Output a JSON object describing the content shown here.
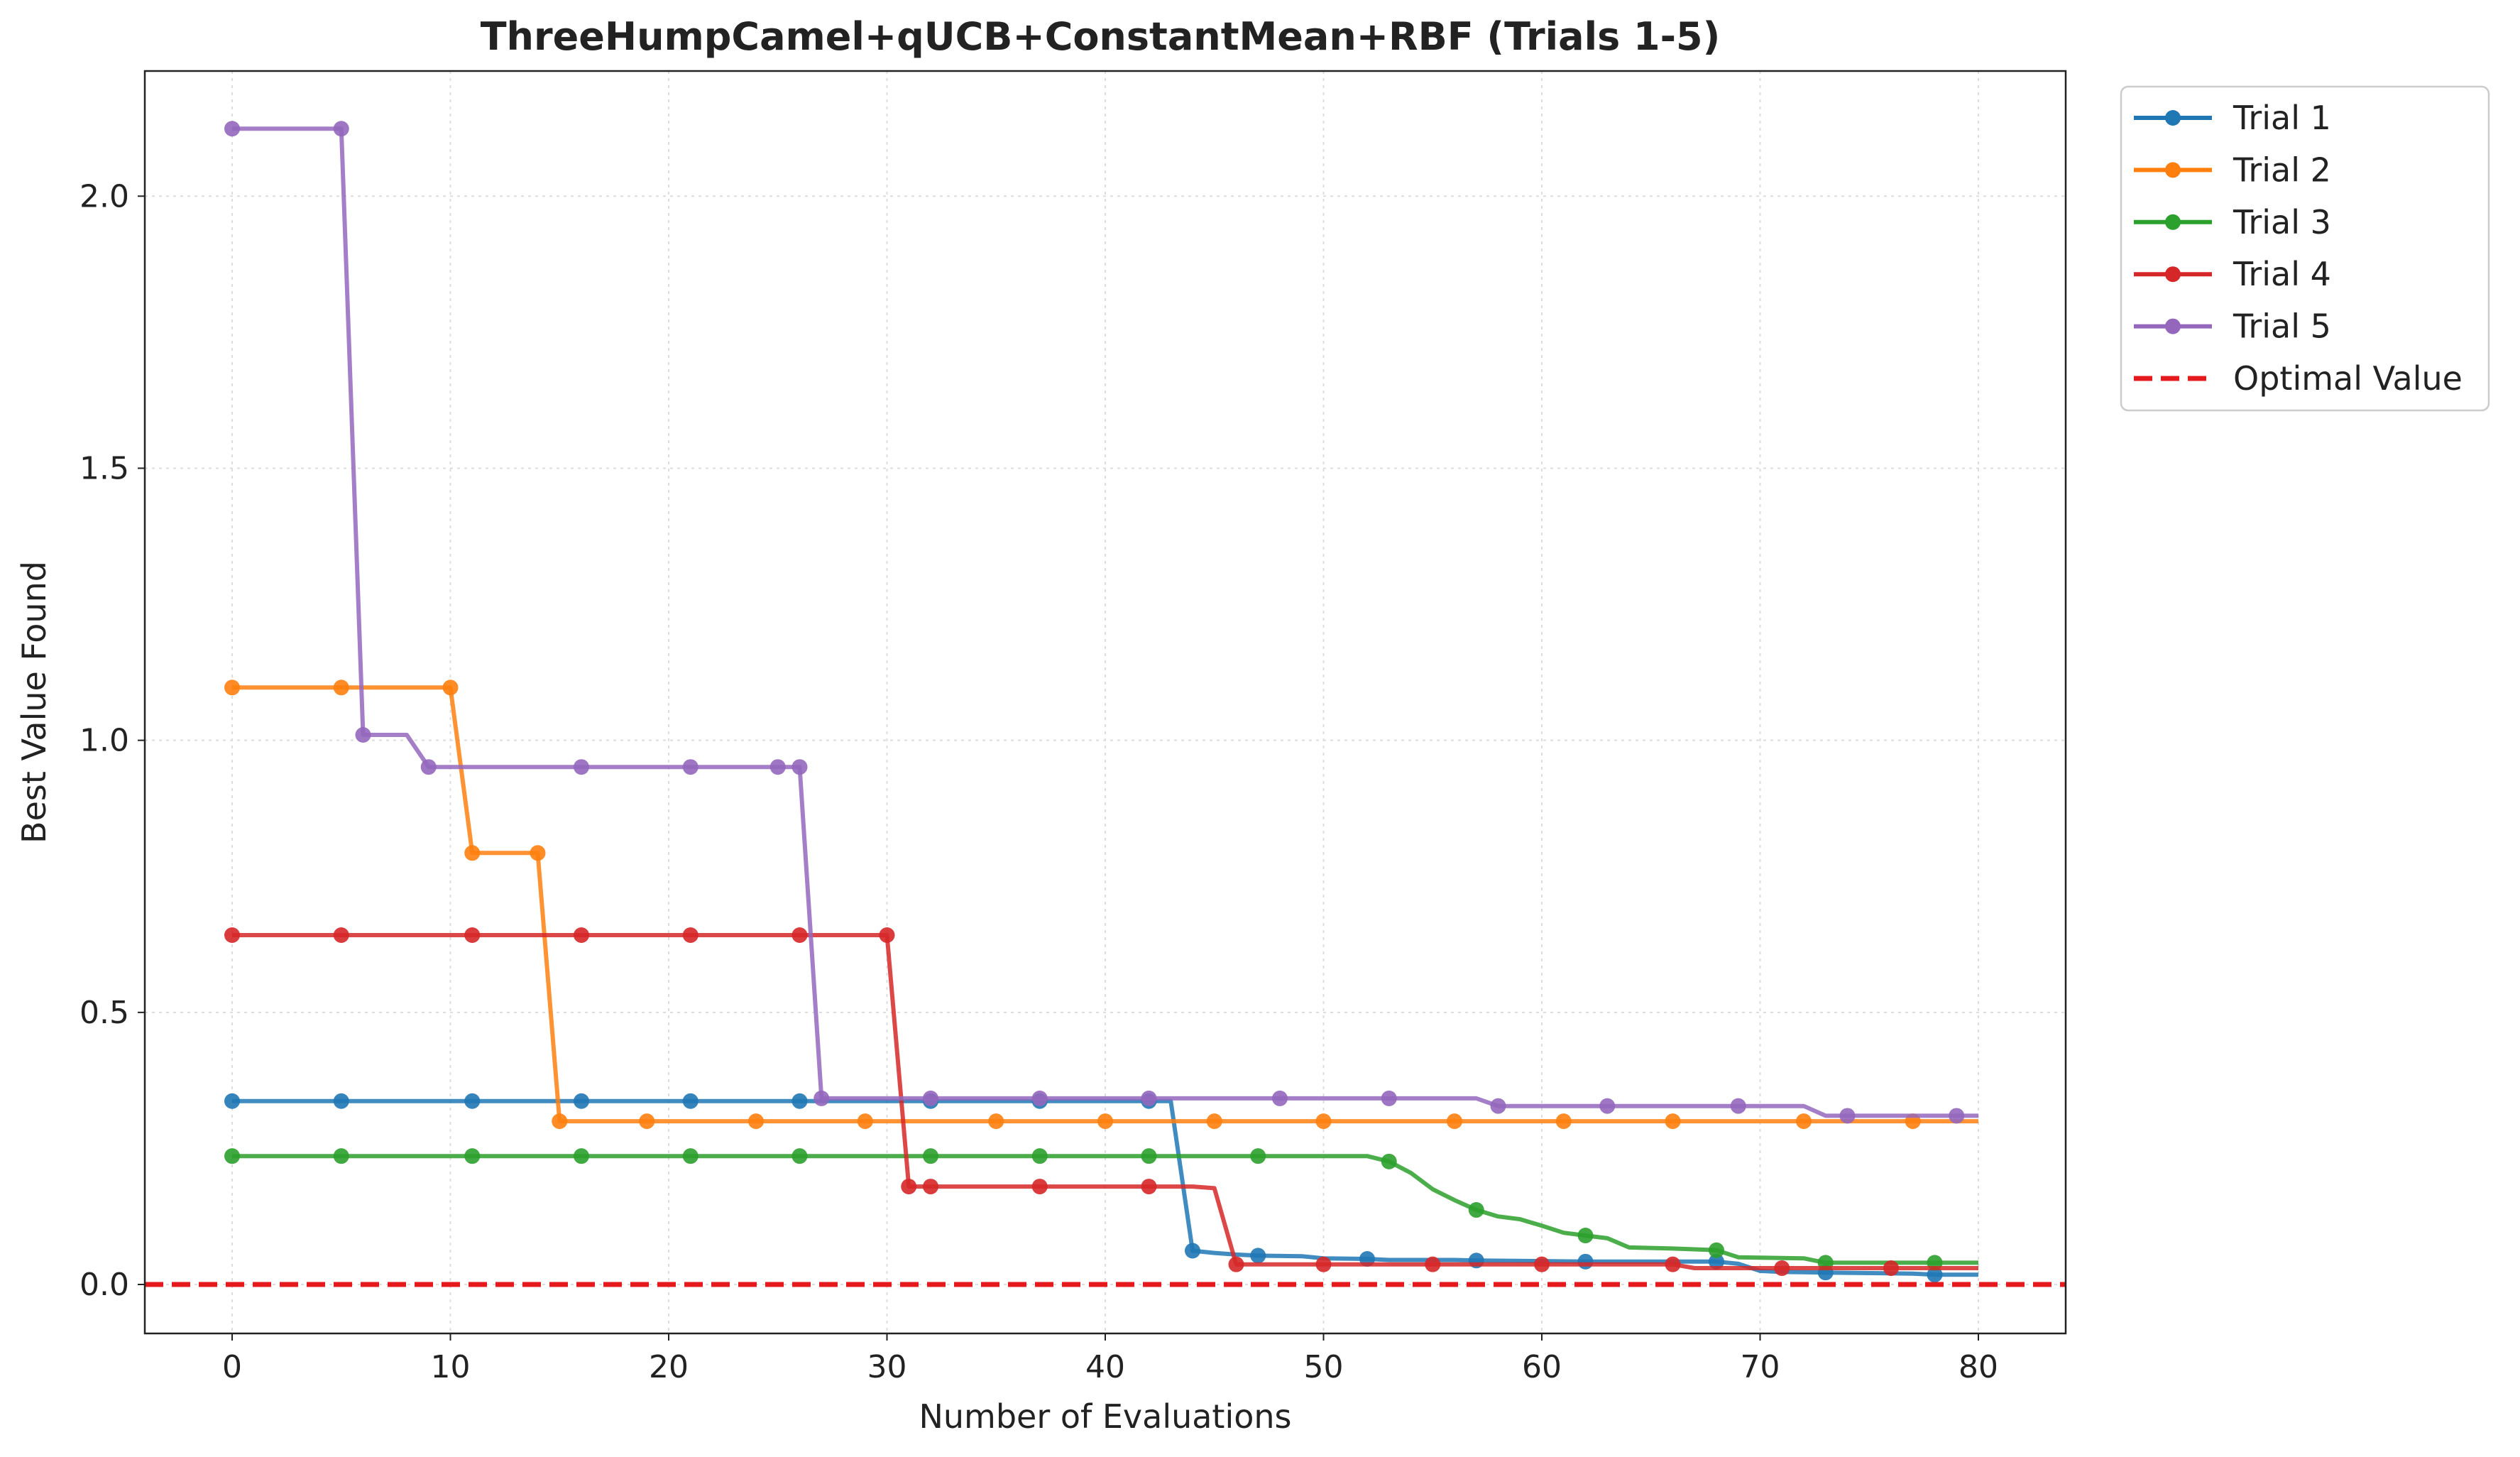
{
  "chart_data": {
    "type": "line",
    "title": "ThreeHumpCamel+qUCB+ConstantMean+RBF (Trials 1-5)",
    "xlabel": "Number of Evaluations",
    "ylabel": "Best Value Found",
    "xlim": [
      -4,
      84
    ],
    "ylim": [
      -0.09,
      2.23
    ],
    "xticks": [
      0,
      10,
      20,
      30,
      40,
      50,
      60,
      70,
      80
    ],
    "yticks": [
      0.0,
      0.5,
      1.0,
      1.5,
      2.0
    ],
    "xtick_labels": [
      "0",
      "10",
      "20",
      "30",
      "40",
      "50",
      "60",
      "70",
      "80"
    ],
    "ytick_labels": [
      "0.0",
      "0.5",
      "1.0",
      "1.5",
      "2.0"
    ],
    "grid": true,
    "legend_position": "outside-top-right",
    "optimal_value": {
      "name": "Optimal Value",
      "y": 0.0,
      "color": "#e41a1c"
    },
    "series": [
      {
        "name": "Trial 1",
        "color": "#1f77b4",
        "points": [
          [
            0,
            0.337
          ],
          [
            43,
            0.337
          ],
          [
            44,
            0.062
          ],
          [
            45,
            0.058
          ],
          [
            46,
            0.055
          ],
          [
            47,
            0.053
          ],
          [
            49,
            0.052
          ],
          [
            50,
            0.048
          ],
          [
            52,
            0.047
          ],
          [
            53,
            0.045
          ],
          [
            56,
            0.045
          ],
          [
            57,
            0.044
          ],
          [
            60,
            0.043
          ],
          [
            62,
            0.042
          ],
          [
            68,
            0.042
          ],
          [
            69,
            0.038
          ],
          [
            70,
            0.025
          ],
          [
            71,
            0.023
          ],
          [
            73,
            0.022
          ],
          [
            77,
            0.02
          ],
          [
            78,
            0.018
          ],
          [
            80,
            0.018
          ]
        ],
        "markers": [
          0,
          5,
          11,
          16,
          21,
          26,
          32,
          37,
          42,
          44,
          47,
          52,
          57,
          62,
          68,
          73,
          78
        ]
      },
      {
        "name": "Trial 2",
        "color": "#ff7f0e",
        "points": [
          [
            0,
            1.097
          ],
          [
            10,
            1.097
          ],
          [
            11,
            0.793
          ],
          [
            14,
            0.793
          ],
          [
            15,
            0.3
          ],
          [
            80,
            0.3
          ]
        ],
        "markers": [
          0,
          5,
          10,
          11,
          14,
          15,
          19,
          24,
          29,
          35,
          40,
          45,
          50,
          56,
          61,
          66,
          72,
          77
        ]
      },
      {
        "name": "Trial 3",
        "color": "#2ca02c",
        "points": [
          [
            0,
            0.236
          ],
          [
            52,
            0.236
          ],
          [
            53,
            0.226
          ],
          [
            54,
            0.205
          ],
          [
            55,
            0.175
          ],
          [
            56,
            0.155
          ],
          [
            57,
            0.137
          ],
          [
            58,
            0.125
          ],
          [
            59,
            0.12
          ],
          [
            60,
            0.108
          ],
          [
            61,
            0.095
          ],
          [
            62,
            0.09
          ],
          [
            63,
            0.085
          ],
          [
            64,
            0.068
          ],
          [
            66,
            0.066
          ],
          [
            68,
            0.063
          ],
          [
            69,
            0.05
          ],
          [
            72,
            0.048
          ],
          [
            73,
            0.04
          ],
          [
            80,
            0.04
          ]
        ],
        "markers": [
          0,
          5,
          11,
          16,
          21,
          26,
          32,
          37,
          42,
          47,
          53,
          57,
          62,
          68,
          73,
          78
        ]
      },
      {
        "name": "Trial 4",
        "color": "#d62728",
        "points": [
          [
            0,
            0.642
          ],
          [
            30,
            0.642
          ],
          [
            31,
            0.18
          ],
          [
            44,
            0.18
          ],
          [
            45,
            0.177
          ],
          [
            46,
            0.037
          ],
          [
            66,
            0.037
          ],
          [
            67,
            0.03
          ],
          [
            71,
            0.03
          ],
          [
            80,
            0.03
          ]
        ],
        "markers": [
          0,
          5,
          11,
          16,
          21,
          26,
          30,
          31,
          32,
          37,
          42,
          46,
          50,
          55,
          60,
          66,
          71,
          76
        ]
      },
      {
        "name": "Trial 5",
        "color": "#9467bd",
        "points": [
          [
            0,
            2.124
          ],
          [
            5,
            2.124
          ],
          [
            6,
            1.01
          ],
          [
            8,
            1.01
          ],
          [
            9,
            0.951
          ],
          [
            26,
            0.951
          ],
          [
            27,
            0.342
          ],
          [
            57,
            0.342
          ],
          [
            58,
            0.328
          ],
          [
            72,
            0.328
          ],
          [
            73,
            0.31
          ],
          [
            80,
            0.31
          ]
        ],
        "markers": [
          0,
          5,
          6,
          9,
          16,
          21,
          25,
          26,
          27,
          32,
          37,
          42,
          48,
          53,
          58,
          63,
          69,
          74,
          79
        ]
      }
    ]
  }
}
